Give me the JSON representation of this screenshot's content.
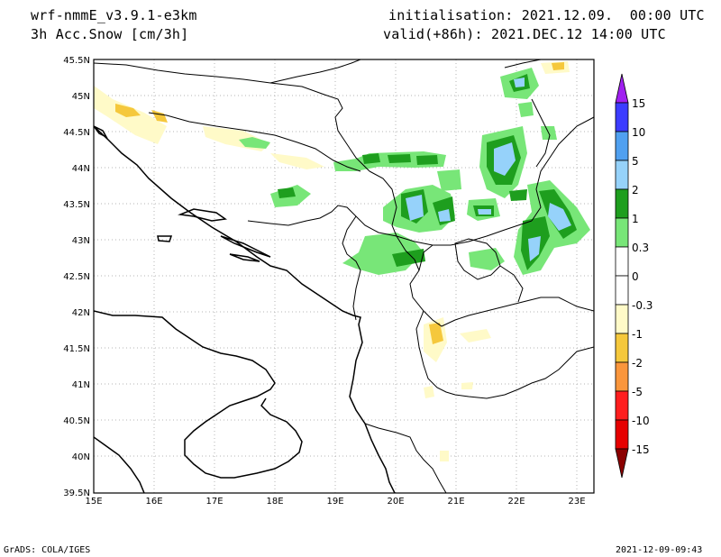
{
  "header": {
    "model": "wrf-nmmE_v3.9.1-e3km",
    "variable": "3h Acc.Snow [cm/3h]",
    "init": "initialisation: 2021.12.09.  00:00 UTC",
    "valid": "valid(+86h): 2021.DEC.12 14:00 UTC"
  },
  "footer": {
    "left": "GrADS: COLA/IGES",
    "right": "2021-12-09-09:43"
  },
  "map": {
    "lat_labels": [
      "45.5N",
      "45N",
      "44.5N",
      "44N",
      "43.5N",
      "43N",
      "42.5N",
      "42N",
      "41.5N",
      "41N",
      "40.5N",
      "40N",
      "39.5N"
    ],
    "lon_labels": [
      "15E",
      "16E",
      "17E",
      "18E",
      "19E",
      "20E",
      "21E",
      "22E",
      "23E"
    ],
    "lat_range": [
      39.5,
      45.5
    ],
    "lon_range": [
      15.0,
      23.25
    ],
    "grid": true
  },
  "colorbar": {
    "labels": [
      "15",
      "10",
      "5",
      "2",
      "1",
      "0.3",
      "0",
      "-0.3",
      "-1",
      "-2",
      "-5",
      "-10",
      "-15"
    ],
    "colors": {
      "top_arrow": "#a020f0",
      "c15": "#3c3cff",
      "c10": "#50a0f0",
      "c5": "#96d2fa",
      "c2": "#1e9e1e",
      "c1": "#78e678",
      "c03": "#ffffff",
      "cm03": "#fffac8",
      "cm1": "#f5c83c",
      "cm2": "#fa963c",
      "cm5": "#ff1e1e",
      "cm10": "#e60000",
      "cm15": "#a50000",
      "bottom_arrow": "#8b0000"
    }
  }
}
